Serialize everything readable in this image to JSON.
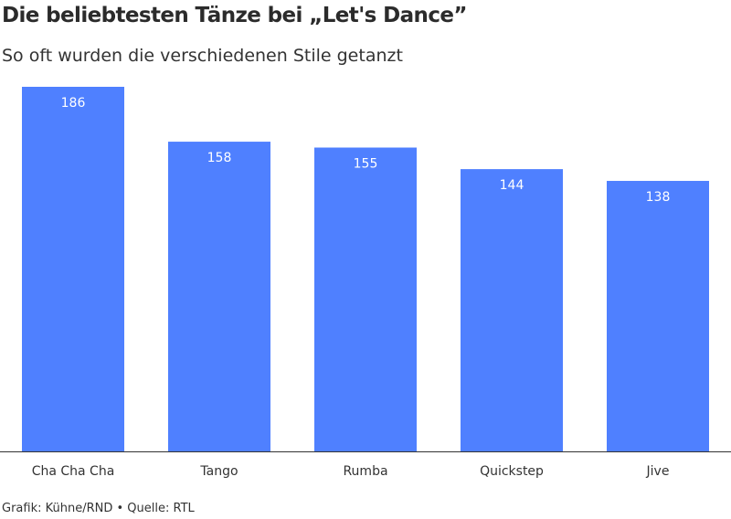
{
  "title": "Die beliebtesten Tänze bei „Let's Dance”",
  "subtitle": "So oft wurden die verschiedenen Stile getanzt",
  "source": "Grafik: Kühne/RND • Quelle: RTL",
  "colors": {
    "bar": "#4f80ff",
    "baseline": "#333333"
  },
  "chart_data": {
    "type": "bar",
    "categories": [
      "Cha Cha Cha",
      "Tango",
      "Rumba",
      "Quickstep",
      "Jive"
    ],
    "values": [
      186,
      158,
      155,
      144,
      138
    ],
    "ylim": [
      0,
      186
    ],
    "grid": false,
    "data_labels": true
  }
}
